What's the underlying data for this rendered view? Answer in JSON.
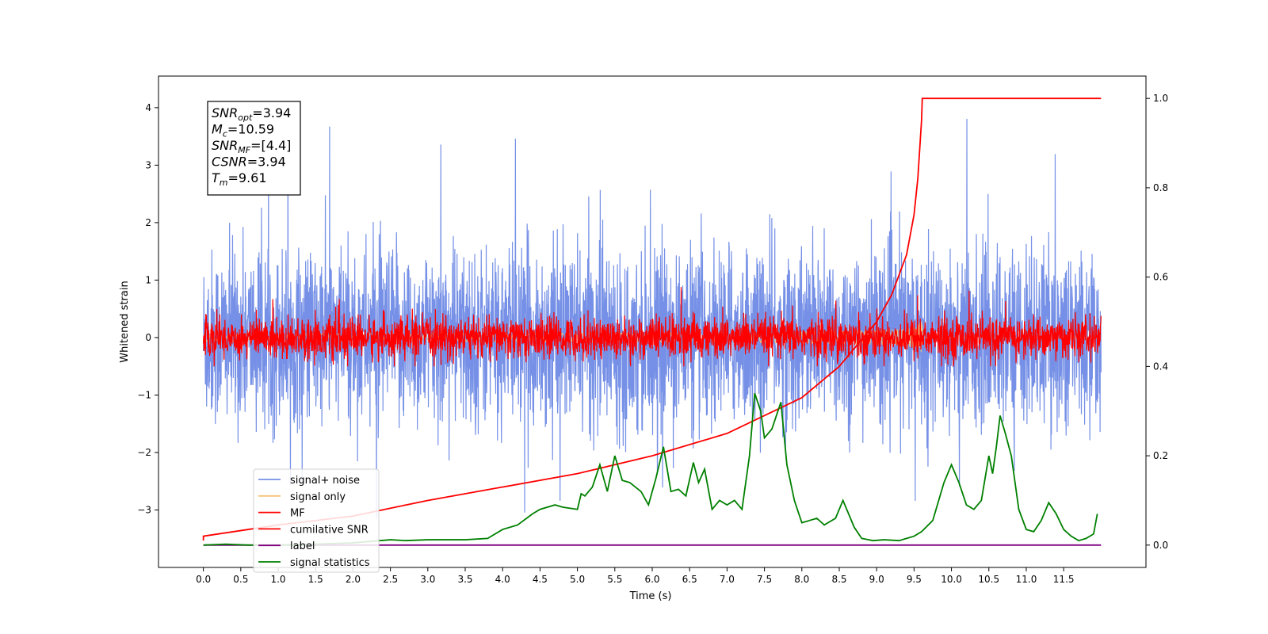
{
  "chart_data": {
    "type": "line",
    "xlabel": "Time (s)",
    "ylabel": "Whitened strain",
    "ylabel_right": "",
    "xlim": [
      -0.6,
      12.6
    ],
    "ylim": [
      -4.0,
      4.55
    ],
    "ylim_right": [
      -0.05,
      1.05
    ],
    "x_ticks": [
      0.0,
      0.5,
      1.0,
      1.5,
      2.0,
      2.5,
      3.0,
      3.5,
      4.0,
      4.5,
      5.0,
      5.5,
      6.0,
      6.5,
      7.0,
      7.5,
      8.0,
      8.5,
      9.0,
      9.5,
      10.0,
      10.5,
      11.0,
      11.5
    ],
    "x_tick_labels": [
      "0.0",
      "0.5",
      "1.0",
      "1.5",
      "2.0",
      "2.5",
      "3.0",
      "3.5",
      "4.0",
      "4.5",
      "5.0",
      "5.5",
      "6.0",
      "6.5",
      "7.0",
      "7.5",
      "8.0",
      "8.5",
      "9.0",
      "9.5",
      "10.0",
      "10.5",
      "11.0",
      "11.5"
    ],
    "y_ticks": [
      -3,
      -2,
      -1,
      0,
      1,
      2,
      3,
      4
    ],
    "y_tick_labels": [
      "−3",
      "−2",
      "−1",
      "0",
      "1",
      "2",
      "3",
      "4"
    ],
    "y_right_ticks": [
      0.0,
      0.2,
      0.4,
      0.6,
      0.8,
      1.0
    ],
    "y_right_tick_labels": [
      "0.0",
      "0.2",
      "0.4",
      "0.6",
      "0.8",
      "1.0"
    ],
    "grid": false,
    "legend_position": "lower-left",
    "series": [
      {
        "name": "signal+ noise",
        "axis": "left",
        "color": "#7590e6",
        "style": "noise",
        "x_range": [
          0.0,
          12.0
        ],
        "center": 0.0,
        "typical_range": [
          -1.7,
          1.7
        ],
        "extreme_range": [
          -3.6,
          4.2
        ]
      },
      {
        "name": "signal only",
        "axis": "left",
        "color": "#f5c27a",
        "style": "chirp",
        "x_range": [
          0.0,
          12.0
        ],
        "merger_time": 9.61,
        "peak_amplitude": 0.7
      },
      {
        "name": "MF",
        "axis": "left",
        "color": "#ff0000",
        "style": "noise",
        "x_range": [
          0.0,
          12.0
        ],
        "center": 0.0,
        "typical_range": [
          -0.4,
          0.4
        ],
        "extreme_range": [
          -0.5,
          1.0
        ]
      },
      {
        "name": "cumilative SNR",
        "axis": "right",
        "color": "#ff0000",
        "style": "line",
        "x": [
          0.0,
          0.0,
          1.0,
          2.0,
          3.0,
          4.0,
          5.0,
          6.0,
          7.0,
          8.0,
          8.5,
          9.0,
          9.2,
          9.4,
          9.5,
          9.55,
          9.6,
          9.61,
          12.0
        ],
        "y": [
          0.01,
          0.02,
          0.045,
          0.065,
          0.1,
          0.13,
          0.16,
          0.2,
          0.25,
          0.33,
          0.4,
          0.5,
          0.56,
          0.65,
          0.74,
          0.82,
          0.95,
          1.0,
          1.0
        ]
      },
      {
        "name": "label",
        "axis": "right",
        "color": "#800080",
        "style": "line",
        "x": [
          0.0,
          12.0
        ],
        "y": [
          0.0,
          0.0
        ]
      },
      {
        "name": "signal statistics",
        "axis": "right",
        "color": "#008000",
        "style": "line",
        "x": [
          0.0,
          0.3,
          0.6,
          1.0,
          1.5,
          2.0,
          2.5,
          2.7,
          3.0,
          3.5,
          3.8,
          4.0,
          4.2,
          4.4,
          4.5,
          4.7,
          4.8,
          5.0,
          5.05,
          5.1,
          5.2,
          5.3,
          5.4,
          5.5,
          5.6,
          5.7,
          5.85,
          5.95,
          6.05,
          6.15,
          6.25,
          6.35,
          6.45,
          6.55,
          6.62,
          6.7,
          6.8,
          6.9,
          7.0,
          7.1,
          7.2,
          7.3,
          7.37,
          7.45,
          7.5,
          7.6,
          7.72,
          7.8,
          7.9,
          8.0,
          8.1,
          8.2,
          8.3,
          8.45,
          8.55,
          8.7,
          8.8,
          8.95,
          9.1,
          9.3,
          9.5,
          9.6,
          9.75,
          9.9,
          10.0,
          10.1,
          10.2,
          10.3,
          10.4,
          10.5,
          10.55,
          10.6,
          10.65,
          10.72,
          10.8,
          10.9,
          11.0,
          11.1,
          11.2,
          11.3,
          11.4,
          11.5,
          11.6,
          11.7,
          11.8,
          11.9,
          11.95
        ],
        "y": [
          0.0,
          0.002,
          0.0,
          0.0,
          0.002,
          0.005,
          0.012,
          0.01,
          0.012,
          0.012,
          0.015,
          0.035,
          0.045,
          0.07,
          0.08,
          0.09,
          0.085,
          0.08,
          0.115,
          0.11,
          0.13,
          0.18,
          0.12,
          0.2,
          0.145,
          0.14,
          0.12,
          0.09,
          0.15,
          0.22,
          0.12,
          0.125,
          0.11,
          0.185,
          0.14,
          0.17,
          0.08,
          0.1,
          0.09,
          0.1,
          0.08,
          0.2,
          0.34,
          0.3,
          0.24,
          0.26,
          0.32,
          0.18,
          0.1,
          0.05,
          0.055,
          0.06,
          0.045,
          0.06,
          0.1,
          0.04,
          0.015,
          0.01,
          0.012,
          0.01,
          0.02,
          0.03,
          0.055,
          0.14,
          0.18,
          0.14,
          0.09,
          0.08,
          0.1,
          0.2,
          0.16,
          0.22,
          0.29,
          0.25,
          0.2,
          0.08,
          0.035,
          0.03,
          0.055,
          0.095,
          0.07,
          0.035,
          0.02,
          0.01,
          0.015,
          0.025,
          0.07
        ]
      }
    ],
    "annotation": {
      "lines": [
        {
          "sym": "SNR",
          "sub": "opt",
          "val": "=3.94"
        },
        {
          "sym": "M",
          "sub": "c",
          "val": "=10.59"
        },
        {
          "sym": "SNR",
          "sub": "MF",
          "val": "=[4.4]"
        },
        {
          "sym": "CSNR",
          "sub": "",
          "val": "=3.94"
        },
        {
          "sym": "T",
          "sub": "m",
          "val": "=9.61"
        }
      ]
    }
  }
}
